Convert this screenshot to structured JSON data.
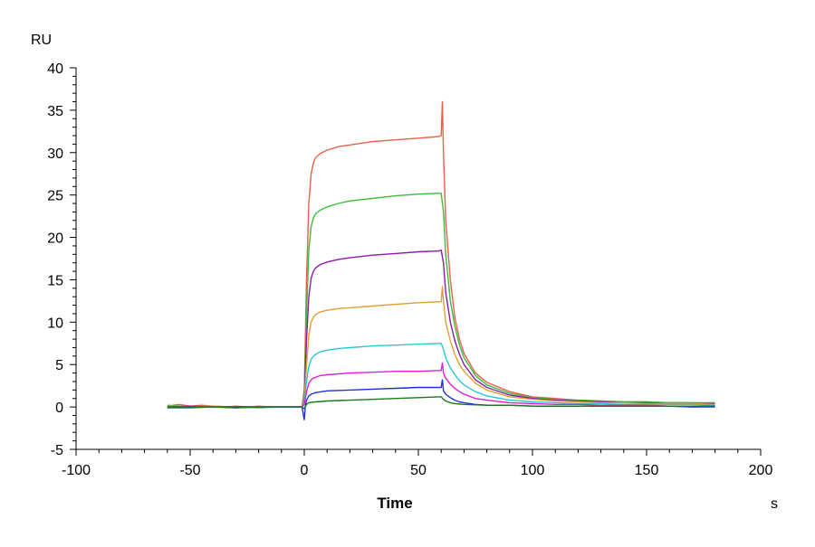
{
  "chart_data": {
    "type": "line",
    "title": "",
    "xlabel": "Time",
    "x_unit": "s",
    "y_unit": "RU",
    "xlim": [
      -100,
      200
    ],
    "ylim": [
      -5,
      40
    ],
    "x_ticks": [
      -100,
      -50,
      0,
      50,
      100,
      150,
      200
    ],
    "x_tick_labels": [
      "-100",
      "-50",
      "0",
      "50",
      "100",
      "150",
      "200"
    ],
    "y_ticks": [
      -5,
      0,
      5,
      10,
      15,
      20,
      25,
      30,
      35,
      40
    ],
    "y_tick_labels": [
      "-5",
      "0",
      "5",
      "10",
      "15",
      "20",
      "25",
      "30",
      "35",
      "40"
    ],
    "grid": false,
    "legend": "none",
    "series": [
      {
        "color": "#e8604c",
        "points": [
          [
            -60,
            0.1
          ],
          [
            -55,
            0.3
          ],
          [
            -50,
            0.1
          ],
          [
            -45,
            0.2
          ],
          [
            -40,
            0.1
          ],
          [
            -35,
            0.0
          ],
          [
            -30,
            0.1
          ],
          [
            -25,
            0.0
          ],
          [
            -20,
            0.1
          ],
          [
            -15,
            0.0
          ],
          [
            -10,
            0.0
          ],
          [
            -5,
            0.0
          ],
          [
            -1,
            0.0
          ],
          [
            0,
            2.0
          ],
          [
            1,
            15
          ],
          [
            2,
            24
          ],
          [
            3,
            27.5
          ],
          [
            4,
            28.8
          ],
          [
            5,
            29.4
          ],
          [
            7,
            29.9
          ],
          [
            10,
            30.3
          ],
          [
            15,
            30.7
          ],
          [
            20,
            30.9
          ],
          [
            30,
            31.3
          ],
          [
            40,
            31.5
          ],
          [
            50,
            31.7
          ],
          [
            59,
            31.9
          ],
          [
            60,
            32.0
          ],
          [
            60.5,
            36.0
          ],
          [
            61,
            30
          ],
          [
            62,
            22
          ],
          [
            64,
            15
          ],
          [
            66,
            10.5
          ],
          [
            68,
            8
          ],
          [
            70,
            6.3
          ],
          [
            75,
            4
          ],
          [
            80,
            2.9
          ],
          [
            90,
            1.8
          ],
          [
            100,
            1.2
          ],
          [
            110,
            1.0
          ],
          [
            120,
            0.8
          ],
          [
            130,
            0.7
          ],
          [
            140,
            0.6
          ],
          [
            150,
            0.6
          ],
          [
            160,
            0.5
          ],
          [
            170,
            0.5
          ],
          [
            180,
            0.4
          ]
        ]
      },
      {
        "color": "#3bbd3b",
        "points": [
          [
            -60,
            0.2
          ],
          [
            -50,
            0.0
          ],
          [
            -40,
            0.1
          ],
          [
            -30,
            0.0
          ],
          [
            -20,
            -0.1
          ],
          [
            -10,
            0.0
          ],
          [
            -1,
            0.0
          ],
          [
            0,
            1.5
          ],
          [
            1,
            11
          ],
          [
            2,
            18.5
          ],
          [
            3,
            21.3
          ],
          [
            4,
            22.3
          ],
          [
            5,
            22.8
          ],
          [
            7,
            23.2
          ],
          [
            10,
            23.6
          ],
          [
            15,
            24.0
          ],
          [
            20,
            24.3
          ],
          [
            30,
            24.6
          ],
          [
            40,
            24.9
          ],
          [
            50,
            25.1
          ],
          [
            59,
            25.2
          ],
          [
            60,
            25.2
          ],
          [
            61,
            23
          ],
          [
            62,
            18
          ],
          [
            64,
            12.5
          ],
          [
            66,
            9.5
          ],
          [
            68,
            7.3
          ],
          [
            70,
            5.8
          ],
          [
            75,
            3.7
          ],
          [
            80,
            2.6
          ],
          [
            90,
            1.6
          ],
          [
            100,
            1.1
          ],
          [
            110,
            0.9
          ],
          [
            120,
            0.8
          ],
          [
            130,
            0.7
          ],
          [
            140,
            0.6
          ],
          [
            150,
            0.6
          ],
          [
            160,
            0.5
          ],
          [
            170,
            0.5
          ],
          [
            180,
            0.5
          ]
        ]
      },
      {
        "color": "#8a1ca8",
        "points": [
          [
            -60,
            0.0
          ],
          [
            -50,
            0.1
          ],
          [
            -40,
            0.0
          ],
          [
            -30,
            -0.1
          ],
          [
            -20,
            0.0
          ],
          [
            -10,
            0.0
          ],
          [
            -1,
            0.0
          ],
          [
            0,
            1.0
          ],
          [
            1,
            8
          ],
          [
            2,
            13
          ],
          [
            3,
            15.2
          ],
          [
            4,
            16.0
          ],
          [
            5,
            16.4
          ],
          [
            7,
            16.8
          ],
          [
            10,
            17.1
          ],
          [
            15,
            17.4
          ],
          [
            20,
            17.6
          ],
          [
            30,
            17.9
          ],
          [
            40,
            18.1
          ],
          [
            50,
            18.3
          ],
          [
            59,
            18.4
          ],
          [
            60,
            18.5
          ],
          [
            61,
            17
          ],
          [
            62,
            13.5
          ],
          [
            64,
            10
          ],
          [
            66,
            7.8
          ],
          [
            68,
            6.2
          ],
          [
            70,
            5.0
          ],
          [
            75,
            3.2
          ],
          [
            80,
            2.3
          ],
          [
            90,
            1.4
          ],
          [
            100,
            1.0
          ],
          [
            110,
            0.8
          ],
          [
            120,
            0.7
          ],
          [
            130,
            0.6
          ],
          [
            140,
            0.5
          ],
          [
            150,
            0.5
          ],
          [
            160,
            0.4
          ],
          [
            170,
            0.4
          ],
          [
            180,
            0.4
          ]
        ]
      },
      {
        "color": "#e0a030",
        "points": [
          [
            -60,
            0.1
          ],
          [
            -50,
            0.0
          ],
          [
            -40,
            0.1
          ],
          [
            -30,
            0.0
          ],
          [
            -20,
            0.0
          ],
          [
            -10,
            0.0
          ],
          [
            -1,
            0.0
          ],
          [
            0,
            0.8
          ],
          [
            1,
            5
          ],
          [
            2,
            8.5
          ],
          [
            3,
            10
          ],
          [
            4,
            10.6
          ],
          [
            5,
            10.9
          ],
          [
            7,
            11.2
          ],
          [
            10,
            11.4
          ],
          [
            15,
            11.6
          ],
          [
            20,
            11.7
          ],
          [
            30,
            11.9
          ],
          [
            40,
            12.1
          ],
          [
            50,
            12.3
          ],
          [
            59,
            12.4
          ],
          [
            60,
            12.4
          ],
          [
            60.5,
            14.2
          ],
          [
            61,
            12.5
          ],
          [
            62,
            10
          ],
          [
            64,
            7.8
          ],
          [
            66,
            6.2
          ],
          [
            68,
            5.0
          ],
          [
            70,
            4.2
          ],
          [
            75,
            2.8
          ],
          [
            80,
            2.0
          ],
          [
            90,
            1.2
          ],
          [
            100,
            0.9
          ],
          [
            110,
            0.7
          ],
          [
            120,
            0.6
          ],
          [
            130,
            0.5
          ],
          [
            140,
            0.5
          ],
          [
            150,
            0.4
          ],
          [
            160,
            0.4
          ],
          [
            170,
            0.4
          ],
          [
            180,
            0.3
          ]
        ]
      },
      {
        "color": "#28c8d0",
        "points": [
          [
            -60,
            0.0
          ],
          [
            -50,
            0.0
          ],
          [
            -40,
            0.0
          ],
          [
            -30,
            0.0
          ],
          [
            -20,
            0.0
          ],
          [
            -10,
            0.0
          ],
          [
            -1,
            0.0
          ],
          [
            0,
            0.5
          ],
          [
            1,
            3
          ],
          [
            2,
            4.8
          ],
          [
            3,
            5.6
          ],
          [
            4,
            6.0
          ],
          [
            5,
            6.2
          ],
          [
            7,
            6.5
          ],
          [
            10,
            6.7
          ],
          [
            15,
            6.9
          ],
          [
            20,
            7.0
          ],
          [
            30,
            7.2
          ],
          [
            40,
            7.3
          ],
          [
            50,
            7.4
          ],
          [
            59,
            7.5
          ],
          [
            60,
            7.5
          ],
          [
            61,
            6.8
          ],
          [
            62,
            5.8
          ],
          [
            64,
            4.6
          ],
          [
            66,
            3.8
          ],
          [
            68,
            3.1
          ],
          [
            70,
            2.6
          ],
          [
            75,
            1.8
          ],
          [
            80,
            1.3
          ],
          [
            90,
            0.8
          ],
          [
            100,
            0.6
          ],
          [
            110,
            0.5
          ],
          [
            120,
            0.4
          ],
          [
            130,
            0.4
          ],
          [
            140,
            0.3
          ],
          [
            150,
            0.3
          ],
          [
            160,
            0.3
          ],
          [
            170,
            0.3
          ],
          [
            180,
            0.2
          ]
        ]
      },
      {
        "color": "#e020d0",
        "points": [
          [
            -60,
            0.0
          ],
          [
            -50,
            0.0
          ],
          [
            -40,
            0.0
          ],
          [
            -30,
            0.0
          ],
          [
            -20,
            0.0
          ],
          [
            -10,
            0.0
          ],
          [
            -1,
            0.0
          ],
          [
            0,
            0.3
          ],
          [
            1,
            1.8
          ],
          [
            2,
            2.8
          ],
          [
            3,
            3.2
          ],
          [
            4,
            3.4
          ],
          [
            5,
            3.5
          ],
          [
            7,
            3.7
          ],
          [
            10,
            3.8
          ],
          [
            15,
            3.9
          ],
          [
            20,
            4.0
          ],
          [
            30,
            4.1
          ],
          [
            40,
            4.2
          ],
          [
            50,
            4.2
          ],
          [
            59,
            4.3
          ],
          [
            60,
            4.3
          ],
          [
            60.5,
            5.2
          ],
          [
            61,
            4.0
          ],
          [
            62,
            3.4
          ],
          [
            64,
            2.7
          ],
          [
            66,
            2.2
          ],
          [
            68,
            1.8
          ],
          [
            70,
            1.5
          ],
          [
            75,
            1.0
          ],
          [
            80,
            0.8
          ],
          [
            90,
            0.5
          ],
          [
            100,
            0.4
          ],
          [
            110,
            0.3
          ],
          [
            120,
            0.3
          ],
          [
            130,
            0.2
          ],
          [
            140,
            0.2
          ],
          [
            150,
            0.2
          ],
          [
            160,
            0.1
          ],
          [
            170,
            0.0
          ],
          [
            180,
            0.1
          ]
        ]
      },
      {
        "color": "#2030d8",
        "points": [
          [
            -60,
            0.0
          ],
          [
            -50,
            0.0
          ],
          [
            -40,
            0.0
          ],
          [
            -30,
            0.0
          ],
          [
            -20,
            0.0
          ],
          [
            -10,
            0.0
          ],
          [
            -1,
            0.0
          ],
          [
            0,
            -1.5
          ],
          [
            0.5,
            0.2
          ],
          [
            1,
            0.8
          ],
          [
            2,
            1.3
          ],
          [
            3,
            1.5
          ],
          [
            5,
            1.7
          ],
          [
            10,
            1.9
          ],
          [
            20,
            2.0
          ],
          [
            30,
            2.1
          ],
          [
            40,
            2.2
          ],
          [
            50,
            2.3
          ],
          [
            59,
            2.3
          ],
          [
            60,
            2.3
          ],
          [
            60.5,
            3.2
          ],
          [
            61,
            1.9
          ],
          [
            62,
            1.5
          ],
          [
            64,
            1.1
          ],
          [
            66,
            0.8
          ],
          [
            68,
            0.6
          ],
          [
            70,
            0.5
          ],
          [
            75,
            0.3
          ],
          [
            80,
            0.2
          ],
          [
            90,
            0.2
          ],
          [
            100,
            0.1
          ],
          [
            110,
            0.1
          ],
          [
            120,
            0.1
          ],
          [
            130,
            0.1
          ],
          [
            140,
            0.1
          ],
          [
            150,
            0.1
          ],
          [
            160,
            0.1
          ],
          [
            170,
            0.0
          ],
          [
            180,
            0.0
          ]
        ]
      },
      {
        "color": "#1a7a1a",
        "points": [
          [
            -60,
            -0.1
          ],
          [
            -50,
            -0.1
          ],
          [
            -40,
            0.0
          ],
          [
            -30,
            -0.1
          ],
          [
            -20,
            0.0
          ],
          [
            -10,
            0.0
          ],
          [
            -1,
            0.0
          ],
          [
            0,
            -0.2
          ],
          [
            1,
            0.3
          ],
          [
            2,
            0.5
          ],
          [
            5,
            0.6
          ],
          [
            10,
            0.7
          ],
          [
            20,
            0.8
          ],
          [
            30,
            0.9
          ],
          [
            40,
            1.0
          ],
          [
            50,
            1.1
          ],
          [
            59,
            1.2
          ],
          [
            60,
            1.2
          ],
          [
            61,
            0.9
          ],
          [
            62,
            0.7
          ],
          [
            64,
            0.5
          ],
          [
            66,
            0.4
          ],
          [
            70,
            0.3
          ],
          [
            80,
            0.2
          ],
          [
            90,
            0.2
          ],
          [
            100,
            0.1
          ],
          [
            120,
            0.1
          ],
          [
            140,
            0.1
          ],
          [
            160,
            0.1
          ],
          [
            180,
            0.1
          ]
        ]
      }
    ]
  }
}
